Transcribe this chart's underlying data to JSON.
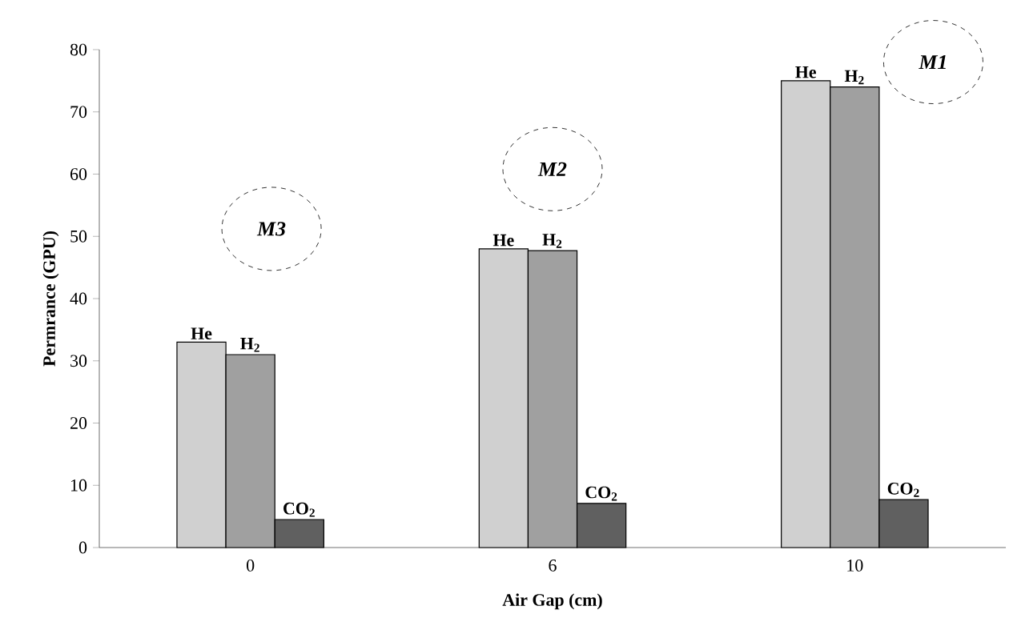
{
  "chart_data": {
    "type": "bar",
    "xlabel": "Air Gap (cm)",
    "ylabel": "Permrance (GPU)",
    "categories": [
      "0",
      "6",
      "10"
    ],
    "series": [
      {
        "name": "He",
        "color": "#d0d0d0",
        "values": [
          33,
          48,
          75
        ]
      },
      {
        "name": "H$_{2}$",
        "color": "#a0a0a0",
        "values": [
          31,
          47.7,
          74
        ]
      },
      {
        "name": "CO$_{2}$",
        "color": "#606060",
        "values": [
          4.5,
          7.1,
          7.7
        ]
      }
    ],
    "ylim": [
      0,
      80
    ],
    "yticks": [
      0,
      10,
      20,
      30,
      40,
      50,
      60,
      70,
      80
    ],
    "grid": false,
    "annotations": [
      "M3",
      "M2",
      "M1"
    ]
  }
}
